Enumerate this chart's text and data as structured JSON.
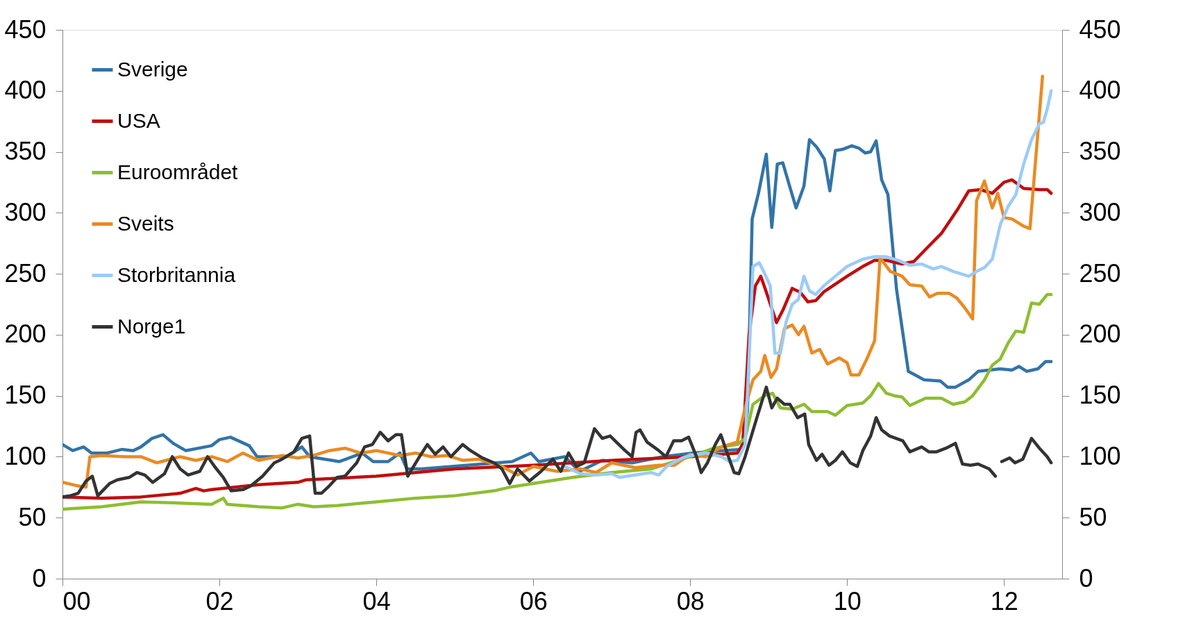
{
  "chart_data": {
    "type": "line",
    "xlim": [
      2000,
      2012.74
    ],
    "xticks": [
      {
        "value": 2000,
        "label": "00"
      },
      {
        "value": 2002,
        "label": "02"
      },
      {
        "value": 2004,
        "label": "04"
      },
      {
        "value": 2006,
        "label": "06"
      },
      {
        "value": 2008,
        "label": "08"
      },
      {
        "value": 2010,
        "label": "10"
      },
      {
        "value": 2012,
        "label": "12"
      }
    ],
    "ylim": [
      0,
      450
    ],
    "yticks": [
      0,
      50,
      100,
      150,
      200,
      250,
      300,
      350,
      400,
      450
    ],
    "y2lim": [
      0,
      450
    ],
    "y2ticks": [
      0,
      50,
      100,
      150,
      200,
      250,
      300,
      350,
      400,
      450
    ],
    "grid": false,
    "legend": "top left",
    "line_style": "solid",
    "marker": "none",
    "series": [
      {
        "name": "Sverige",
        "color": "#3273a8",
        "x": [
          2000.0,
          2000.13,
          2000.27,
          2000.37,
          2000.57,
          2000.76,
          2000.9,
          2001.0,
          2001.14,
          2001.28,
          2001.41,
          2001.57,
          2001.9,
          2002.0,
          2002.14,
          2002.38,
          2002.48,
          2002.86,
          2003.05,
          2003.15,
          2003.53,
          2003.82,
          2003.96,
          2004.15,
          2004.3,
          2004.39,
          2004.58,
          2005.54,
          2005.73,
          2005.97,
          2006.07,
          2006.4,
          2006.59,
          2006.88,
          2007.26,
          2007.65,
          2008.03,
          2008.41,
          2008.65,
          2008.73,
          2008.79,
          2008.87,
          2008.97,
          2009.04,
          2009.11,
          2009.18,
          2009.28,
          2009.35,
          2009.45,
          2009.52,
          2009.61,
          2009.71,
          2009.78,
          2009.85,
          2009.94,
          2010.06,
          2010.15,
          2010.23,
          2010.3,
          2010.37,
          2010.44,
          2010.52,
          2010.63,
          2010.78,
          2010.98,
          2011.19,
          2011.28,
          2011.38,
          2011.55,
          2011.67,
          2011.95,
          2012.1,
          2012.19,
          2012.29,
          2012.43,
          2012.53,
          2012.6
        ],
        "values": [
          110,
          105,
          108,
          103,
          103,
          106,
          105,
          108,
          115,
          118,
          111,
          105,
          109,
          114,
          116,
          109,
          100,
          100,
          108,
          100,
          96,
          103,
          96,
          96,
          103,
          90,
          90,
          95,
          96,
          103,
          96,
          100,
          88,
          97,
          95,
          100,
          103,
          105,
          106,
          137,
          295,
          316,
          348,
          288,
          340,
          341,
          319,
          304,
          322,
          360,
          354,
          344,
          318,
          351,
          352,
          355,
          353,
          349,
          350,
          359,
          327,
          315,
          237,
          170,
          163,
          162,
          157,
          157,
          163,
          170,
          172,
          171,
          174,
          170,
          172,
          178,
          178
        ]
      },
      {
        "name": "USA",
        "color": "#c00d0d",
        "x": [
          2000.0,
          2000.5,
          2001.0,
          2001.5,
          2001.7,
          2001.8,
          2001.9,
          2002.2,
          2002.5,
          2003.0,
          2003.1,
          2004.0,
          2005.0,
          2006.0,
          2007.0,
          2008.0,
          2008.6,
          2008.67,
          2008.75,
          2008.83,
          2008.9,
          2008.97,
          2009.1,
          2009.18,
          2009.3,
          2009.4,
          2009.5,
          2009.6,
          2009.7,
          2010.0,
          2010.2,
          2010.35,
          2010.5,
          2010.7,
          2010.85,
          2011.0,
          2011.2,
          2011.4,
          2011.55,
          2011.7,
          2011.85,
          2012.0,
          2012.1,
          2012.25,
          2012.45,
          2012.55,
          2012.6
        ],
        "values": [
          67,
          66,
          67,
          70,
          74,
          72,
          73,
          75,
          77,
          79,
          81,
          84,
          90,
          93,
          97,
          100,
          103,
          110,
          200,
          240,
          248,
          235,
          210,
          220,
          238,
          235,
          227,
          228,
          235,
          248,
          256,
          261,
          261,
          258,
          260,
          270,
          283,
          302,
          318,
          319,
          316,
          325,
          327,
          320,
          319,
          319,
          316
        ]
      },
      {
        "name": "Euroområdet",
        "color": "#8dbd30",
        "x": [
          2000.0,
          2000.5,
          2001.0,
          2001.5,
          2001.9,
          2002.05,
          2002.1,
          2002.5,
          2002.8,
          2003.0,
          2003.2,
          2003.5,
          2004.0,
          2004.5,
          2005.0,
          2005.5,
          2005.7,
          2006.0,
          2006.5,
          2007.0,
          2007.5,
          2008.0,
          2008.3,
          2008.6,
          2008.7,
          2008.8,
          2008.95,
          2009.05,
          2009.15,
          2009.3,
          2009.45,
          2009.55,
          2009.75,
          2009.85,
          2010.0,
          2010.2,
          2010.3,
          2010.4,
          2010.5,
          2010.6,
          2010.7,
          2010.8,
          2011.0,
          2011.2,
          2011.35,
          2011.5,
          2011.6,
          2011.75,
          2011.85,
          2011.95,
          2012.05,
          2012.15,
          2012.25,
          2012.35,
          2012.45,
          2012.55,
          2012.6
        ],
        "values": [
          57,
          59,
          63,
          62,
          61,
          66,
          61,
          59,
          58,
          61,
          59,
          60,
          63,
          66,
          68,
          72,
          75,
          78,
          83,
          87,
          90,
          100,
          107,
          110,
          115,
          143,
          150,
          152,
          140,
          139,
          143,
          137,
          137,
          134,
          142,
          144,
          150,
          160,
          152,
          150,
          149,
          142,
          148,
          148,
          143,
          145,
          150,
          163,
          175,
          180,
          193,
          203,
          202,
          226,
          225,
          233,
          233
        ]
      },
      {
        "name": "Sveits",
        "color": "#ea8a22",
        "x": [
          2000.0,
          2000.2,
          2000.3,
          2000.35,
          2000.5,
          2000.8,
          2001.0,
          2001.2,
          2001.5,
          2001.7,
          2001.9,
          2002.1,
          2002.3,
          2002.5,
          2002.8,
          2003.0,
          2003.2,
          2003.4,
          2003.6,
          2003.8,
          2004.0,
          2004.3,
          2004.5,
          2004.7,
          2004.9,
          2005.1,
          2005.3,
          2005.6,
          2005.8,
          2006.0,
          2006.3,
          2006.6,
          2006.8,
          2007.0,
          2007.3,
          2007.6,
          2007.8,
          2008.0,
          2008.2,
          2008.4,
          2008.6,
          2008.7,
          2008.8,
          2008.9,
          2008.95,
          2009.03,
          2009.1,
          2009.2,
          2009.3,
          2009.38,
          2009.45,
          2009.55,
          2009.65,
          2009.75,
          2009.9,
          2010.0,
          2010.05,
          2010.15,
          2010.25,
          2010.35,
          2010.42,
          2010.55,
          2010.7,
          2010.8,
          2010.95,
          2011.05,
          2011.15,
          2011.3,
          2011.4,
          2011.5,
          2011.6,
          2011.65,
          2011.75,
          2011.85,
          2011.92,
          2012.0,
          2012.1,
          2012.25,
          2012.33,
          2012.49
        ],
        "values": [
          79,
          76,
          75,
          100,
          101,
          100,
          100,
          95,
          100,
          97,
          100,
          96,
          103,
          97,
          101,
          99,
          101,
          105,
          107,
          103,
          105,
          101,
          103,
          100,
          101,
          97,
          98,
          92,
          85,
          92,
          88,
          90,
          87,
          95,
          91,
          93,
          93,
          102,
          100,
          108,
          112,
          140,
          163,
          170,
          183,
          165,
          172,
          205,
          208,
          200,
          207,
          185,
          188,
          176,
          181,
          177,
          167,
          167,
          180,
          195,
          263,
          252,
          248,
          241,
          240,
          231,
          234,
          234,
          230,
          222,
          213,
          310,
          326,
          304,
          316,
          296,
          295,
          289,
          287,
          412
        ]
      },
      {
        "name": "Storbritannia",
        "color": "#9ccbf8",
        "x": [
          2006.4,
          2006.6,
          2006.8,
          2007.0,
          2007.1,
          2007.3,
          2007.5,
          2007.6,
          2007.7,
          2007.9,
          2008.0,
          2008.2,
          2008.4,
          2008.5,
          2008.6,
          2008.7,
          2008.75,
          2008.8,
          2008.88,
          2008.95,
          2009.02,
          2009.08,
          2009.15,
          2009.22,
          2009.3,
          2009.38,
          2009.45,
          2009.52,
          2009.6,
          2009.7,
          2009.85,
          2010.0,
          2010.2,
          2010.35,
          2010.5,
          2010.65,
          2010.8,
          2010.95,
          2011.1,
          2011.2,
          2011.35,
          2011.55,
          2011.65,
          2011.75,
          2011.85,
          2011.95,
          2012.05,
          2012.15,
          2012.25,
          2012.35,
          2012.45,
          2012.5,
          2012.55,
          2012.6
        ],
        "values": [
          92,
          86,
          85,
          86,
          83,
          85,
          87,
          85,
          92,
          99,
          101,
          103,
          100,
          96,
          97,
          110,
          180,
          256,
          259,
          250,
          240,
          185,
          185,
          210,
          225,
          229,
          248,
          236,
          233,
          240,
          248,
          256,
          262,
          264,
          264,
          261,
          257,
          258,
          254,
          256,
          252,
          248,
          252,
          255,
          262,
          290,
          305,
          315,
          340,
          360,
          373,
          374,
          385,
          400
        ]
      },
      {
        "name": "Norge1",
        "color": "#333333",
        "x": [
          2000.0,
          2000.1,
          2000.2,
          2000.3,
          2000.38,
          2000.45,
          2000.6,
          2000.7,
          2000.85,
          2000.95,
          2001.05,
          2001.15,
          2001.3,
          2001.4,
          2001.5,
          2001.6,
          2001.75,
          2001.85,
          2001.95,
          2002.05,
          2002.15,
          2002.3,
          2002.4,
          2002.55,
          2002.7,
          2002.8,
          2002.95,
          2003.05,
          2003.15,
          2003.22,
          2003.3,
          2003.4,
          2003.5,
          2003.6,
          2003.75,
          2003.85,
          2003.95,
          2004.05,
          2004.15,
          2004.25,
          2004.32,
          2004.4,
          2004.55,
          2004.65,
          2004.75,
          2004.85,
          2004.95,
          2005.1,
          2005.2,
          2005.35,
          2005.5,
          2005.6,
          2005.7,
          2005.8,
          2005.95,
          2006.1,
          2006.25,
          2006.35,
          2006.45,
          2006.55,
          2006.65,
          2006.78,
          2006.88,
          2006.98,
          2007.17,
          2007.26,
          2007.31,
          2007.36,
          2007.45,
          2007.6,
          2007.69,
          2007.79,
          2007.89,
          2007.98,
          2008.08,
          2008.14,
          2008.22,
          2008.32,
          2008.39,
          2008.46,
          2008.56,
          2008.62,
          2008.7,
          2008.84,
          2008.97,
          2009.04,
          2009.11,
          2009.2,
          2009.27,
          2009.37,
          2009.46,
          2009.51,
          2009.61,
          2009.68,
          2009.77,
          2009.85,
          2009.94,
          2010.04,
          2010.13,
          2010.2,
          2010.3,
          2010.37,
          2010.44,
          2010.54,
          2010.71,
          2010.8,
          2010.95,
          2011.04,
          2011.14,
          2011.26,
          2011.38,
          2011.47,
          2011.57,
          2011.67,
          2011.81,
          2011.89,
          2011.93,
          2011.97,
          2012.07,
          2012.14,
          2012.24,
          2012.35,
          2012.45,
          2012.55,
          2012.6
        ],
        "values": [
          67,
          68,
          70,
          80,
          84,
          68,
          78,
          81,
          83,
          87,
          85,
          79,
          86,
          100,
          90,
          85,
          88,
          100,
          91,
          83,
          72,
          73,
          76,
          84,
          95,
          98,
          104,
          115,
          117,
          70,
          70,
          76,
          83,
          84,
          95,
          108,
          110,
          120,
          113,
          118,
          118,
          84,
          100,
          110,
          102,
          108,
          100,
          110,
          105,
          99,
          95,
          90,
          78,
          90,
          80,
          88,
          98,
          88,
          103,
          92,
          95,
          123,
          115,
          117,
          105,
          100,
          120,
          122,
          112,
          105,
          100,
          113,
          113,
          116,
          100,
          87,
          95,
          110,
          118,
          105,
          87,
          86,
          100,
          130,
          157,
          140,
          148,
          143,
          143,
          132,
          135,
          110,
          97,
          102,
          93,
          97,
          104,
          95,
          92,
          105,
          117,
          132,
          122,
          117,
          113,
          104,
          108,
          104,
          104,
          107,
          111,
          94,
          93,
          94,
          90,
          84,
          null,
          96,
          99,
          95,
          98,
          115,
          107,
          100,
          95
        ]
      }
    ]
  }
}
